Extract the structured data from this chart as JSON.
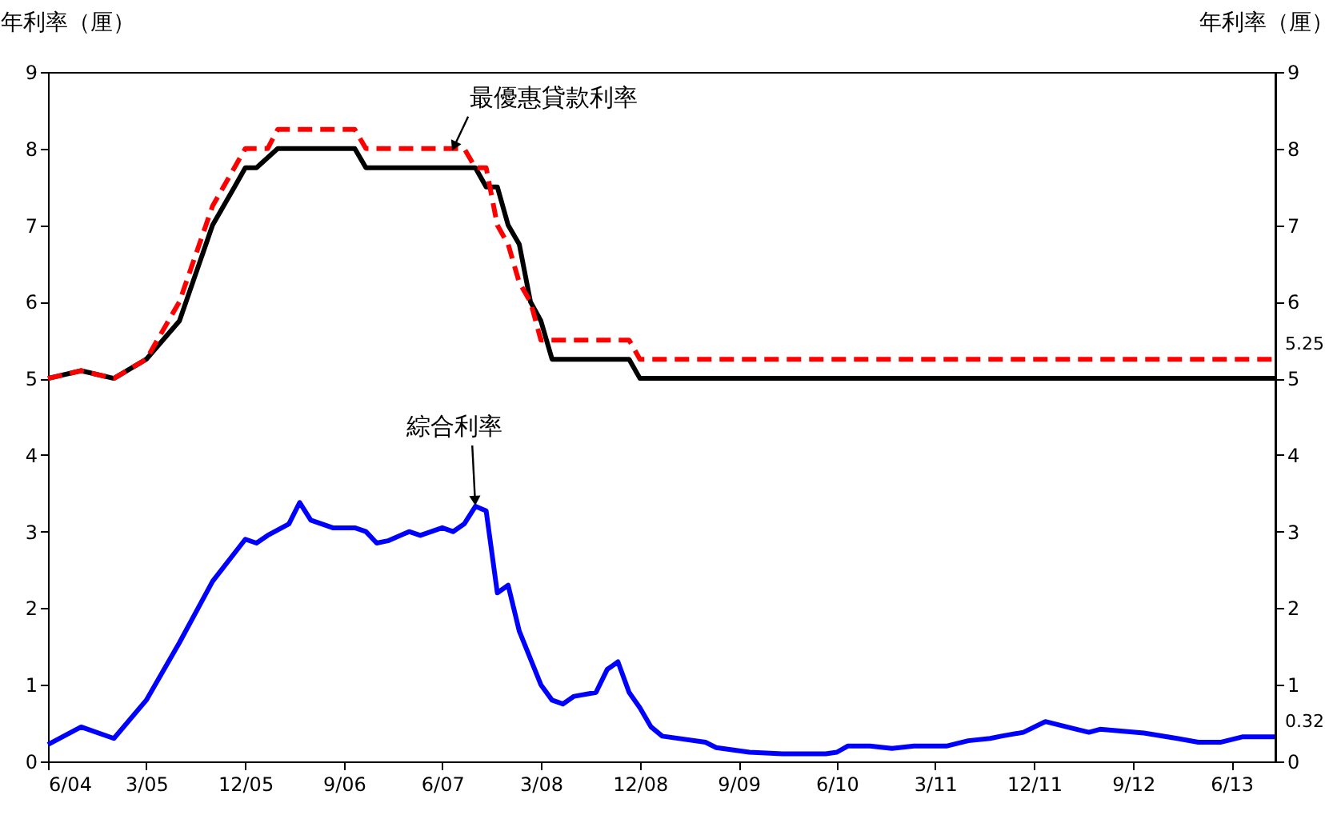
{
  "chart_data": {
    "type": "line",
    "ylabel": "年利率（厘）",
    "y2label": "年利率（厘）",
    "xlim": [
      "2004-06",
      "2013-10"
    ],
    "xticks": [
      {
        "value": "2004-06",
        "label": "6/04"
      },
      {
        "value": "2005-03",
        "label": "3/05"
      },
      {
        "value": "2005-12",
        "label": "12/05"
      },
      {
        "value": "2006-09",
        "label": "9/06"
      },
      {
        "value": "2007-06",
        "label": "6/07"
      },
      {
        "value": "2008-03",
        "label": "3/08"
      },
      {
        "value": "2008-12",
        "label": "12/08"
      },
      {
        "value": "2009-09",
        "label": "9/09"
      },
      {
        "value": "2010-06",
        "label": "6/10"
      },
      {
        "value": "2011-03",
        "label": "3/11"
      },
      {
        "value": "2011-12",
        "label": "12/11"
      },
      {
        "value": "2012-09",
        "label": "9/12"
      },
      {
        "value": "2013-06",
        "label": "6/13"
      }
    ],
    "ylim": [
      0,
      9
    ],
    "yticks": [
      0,
      1,
      2,
      3,
      4,
      5,
      6,
      7,
      8,
      9
    ],
    "y2lim": [
      0,
      9
    ],
    "y2ticks": [
      0,
      1,
      2,
      3,
      4,
      5,
      6,
      7,
      8,
      9
    ],
    "grid": false,
    "series": [
      {
        "color": "#000000",
        "line_style": "solid",
        "x": [
          "2004-06",
          "2004-09",
          "2004-12",
          "2005-03",
          "2005-06",
          "2005-09",
          "2005-11",
          "2005-12",
          "2006-01",
          "2006-03",
          "2006-10",
          "2006-11",
          "2007-09",
          "2007-10",
          "2007-11",
          "2007-12",
          "2008-01",
          "2008-02",
          "2008-03",
          "2008-04",
          "2008-11",
          "2008-12",
          "2013-10"
        ],
        "values": [
          5.0,
          5.1,
          5.0,
          5.25,
          5.75,
          7.0,
          7.5,
          7.75,
          7.75,
          8.0,
          8.0,
          7.75,
          7.75,
          7.5,
          7.5,
          7.0,
          6.75,
          6.0,
          5.75,
          5.25,
          5.25,
          5.0,
          5.0
        ]
      },
      {
        "color": "#ff0000",
        "line_style": "dashed",
        "x": [
          "2004-06",
          "2004-09",
          "2004-12",
          "2005-03",
          "2005-06",
          "2005-09",
          "2005-12",
          "2006-02",
          "2006-03",
          "2006-10",
          "2006-11",
          "2007-08",
          "2007-09",
          "2007-10",
          "2007-11",
          "2007-12",
          "2008-01",
          "2008-02",
          "2008-03",
          "2008-11",
          "2008-12",
          "2013-10"
        ],
        "values": [
          5.0,
          5.1,
          5.0,
          5.25,
          6.0,
          7.25,
          8.0,
          8.0,
          8.25,
          8.25,
          8.0,
          8.0,
          7.75,
          7.75,
          7.0,
          6.75,
          6.25,
          6.0,
          5.5,
          5.5,
          5.25,
          5.25
        ],
        "value_labels": [
          null,
          null,
          null,
          null,
          null,
          null,
          null,
          null,
          null,
          null,
          null,
          null,
          null,
          null,
          null,
          null,
          null,
          null,
          null,
          null,
          null,
          "5.25"
        ]
      },
      {
        "color": "#0000ff",
        "line_style": "solid",
        "x": [
          "2004-06",
          "2004-09",
          "2004-12",
          "2005-03",
          "2005-06",
          "2005-09",
          "2005-12",
          "2006-01",
          "2006-02",
          "2006-04",
          "2006-05",
          "2006-06",
          "2006-08",
          "2006-10",
          "2006-11",
          "2006-12",
          "2007-01",
          "2007-03",
          "2007-04",
          "2007-06",
          "2007-07",
          "2007-08",
          "2007-09",
          "2007-10",
          "2007-11",
          "2007-12",
          "2008-01",
          "2008-03",
          "2008-04",
          "2008-05",
          "2008-06",
          "2008-08",
          "2008-09",
          "2008-10",
          "2008-11",
          "2008-12",
          "2009-01",
          "2009-02",
          "2009-06",
          "2009-07",
          "2009-10",
          "2010-01",
          "2010-05",
          "2010-06",
          "2010-07",
          "2010-09",
          "2010-11",
          "2011-01",
          "2011-04",
          "2011-06",
          "2011-08",
          "2011-09",
          "2011-11",
          "2012-01",
          "2012-03",
          "2012-05",
          "2012-06",
          "2012-10",
          "2013-01",
          "2013-03",
          "2013-05",
          "2013-07",
          "2013-10"
        ],
        "values": [
          0.22,
          0.45,
          0.3,
          0.8,
          1.55,
          2.35,
          2.9,
          2.85,
          2.95,
          3.1,
          3.38,
          3.15,
          3.05,
          3.05,
          3.0,
          2.85,
          2.88,
          3.0,
          2.95,
          3.05,
          3.0,
          3.1,
          3.33,
          3.27,
          2.2,
          2.3,
          1.7,
          1.0,
          0.8,
          0.75,
          0.85,
          0.9,
          1.2,
          1.3,
          0.9,
          0.7,
          0.45,
          0.33,
          0.25,
          0.18,
          0.12,
          0.1,
          0.1,
          0.12,
          0.2,
          0.2,
          0.17,
          0.2,
          0.2,
          0.27,
          0.3,
          0.33,
          0.38,
          0.52,
          0.45,
          0.38,
          0.42,
          0.37,
          0.3,
          0.25,
          0.25,
          0.32,
          0.32
        ],
        "value_labels": [
          null,
          null,
          null,
          null,
          null,
          null,
          null,
          null,
          null,
          null,
          null,
          null,
          null,
          null,
          null,
          null,
          null,
          null,
          null,
          null,
          null,
          null,
          null,
          null,
          null,
          null,
          null,
          null,
          null,
          null,
          null,
          null,
          null,
          null,
          null,
          null,
          null,
          null,
          null,
          null,
          null,
          null,
          null,
          null,
          null,
          null,
          null,
          null,
          null,
          null,
          null,
          null,
          null,
          null,
          null,
          null,
          null,
          null,
          null,
          null,
          null,
          null,
          "0.32"
        ]
      }
    ],
    "annotations": [
      {
        "text": "最優惠貸款利率",
        "x": "2007-07",
        "y": 8.0
      },
      {
        "text": "綜合利率",
        "x": "2007-09",
        "y": 3.33
      }
    ]
  }
}
